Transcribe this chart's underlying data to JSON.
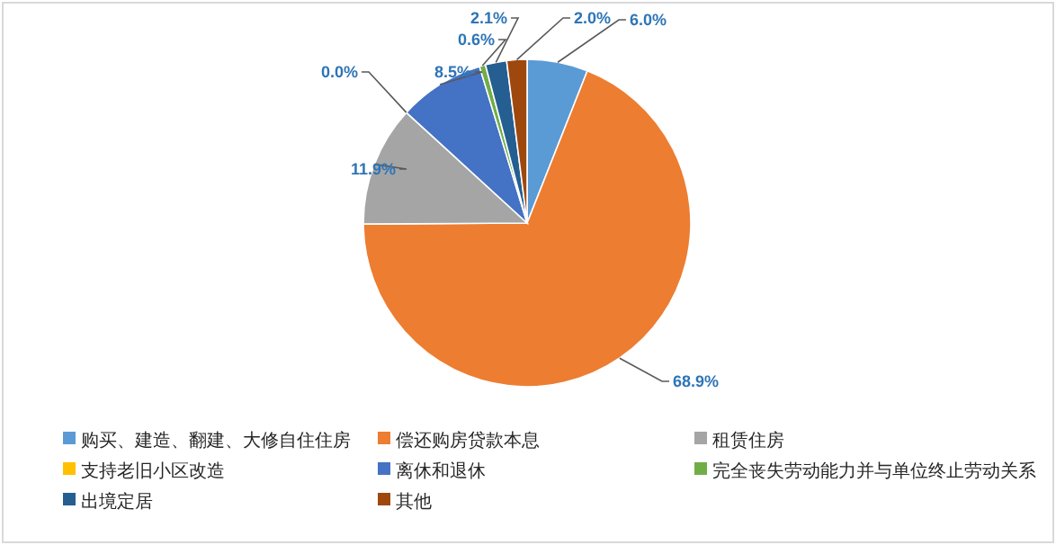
{
  "chart_data": {
    "type": "pie",
    "categories": [
      "购买、建造、翻建、大修自住住房",
      "偿还购房贷款本息",
      "租赁住房",
      "支持老旧小区改造",
      "离休和退休",
      "完全丧失劳动能力并与单位终止劳动关系",
      "出境定居",
      "其他"
    ],
    "values": [
      6.0,
      68.9,
      11.9,
      0.0,
      8.5,
      0.6,
      2.1,
      2.0
    ],
    "value_labels": [
      "6.0%",
      "68.9%",
      "11.9%",
      "0.0%",
      "8.5%",
      "0.6%",
      "2.1%",
      "2.0%"
    ],
    "colors": [
      "#5b9bd5",
      "#ed7d31",
      "#a5a5a5",
      "#ffc000",
      "#4472c4",
      "#70ad47",
      "#255e91",
      "#9e480e"
    ],
    "legend": "bottom"
  }
}
